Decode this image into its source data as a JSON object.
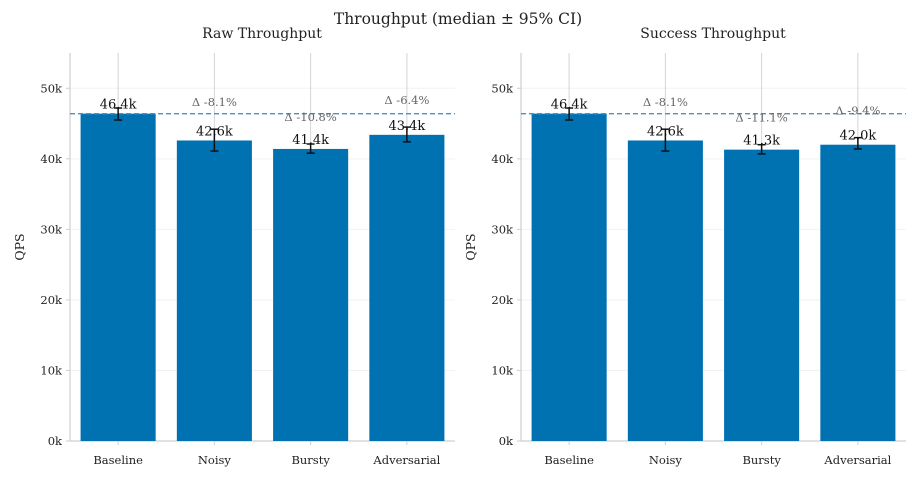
{
  "title": "Throughput (median ± 95% CI)",
  "colors": {
    "bar": "#0072b2",
    "baseline_line": "#4a90c2",
    "error": "#111111",
    "axis": "#cfcfcf",
    "grid": "#f2f2f2"
  },
  "chart_data": [
    {
      "type": "bar",
      "title": "Raw Throughput",
      "ylabel": "QPS",
      "xlabel": "",
      "ylim": [
        0,
        55000
      ],
      "yticks": [
        0,
        10000,
        20000,
        30000,
        40000,
        50000
      ],
      "ytick_labels": [
        "0k",
        "10k",
        "20k",
        "30k",
        "40k",
        "50k"
      ],
      "categories": [
        "Baseline",
        "Noisy",
        "Bursty",
        "Adversarial"
      ],
      "values": [
        46400,
        42600,
        41400,
        43400
      ],
      "error_low": [
        45500,
        41100,
        40800,
        42400
      ],
      "error_high": [
        47200,
        44200,
        42100,
        44500
      ],
      "value_labels": [
        "46.4k",
        "42.6k",
        "41.4k",
        "43.4k"
      ],
      "delta_labels": [
        "",
        "Δ -8.1%",
        "Δ -10.8%",
        "Δ -6.4%"
      ],
      "baseline": 46400
    },
    {
      "type": "bar",
      "title": "Success Throughput",
      "ylabel": "QPS",
      "xlabel": "",
      "ylim": [
        0,
        55000
      ],
      "yticks": [
        0,
        10000,
        20000,
        30000,
        40000,
        50000
      ],
      "ytick_labels": [
        "0k",
        "10k",
        "20k",
        "30k",
        "40k",
        "50k"
      ],
      "categories": [
        "Baseline",
        "Noisy",
        "Bursty",
        "Adversarial"
      ],
      "values": [
        46400,
        42600,
        41300,
        42000
      ],
      "error_low": [
        45500,
        41100,
        40700,
        41400
      ],
      "error_high": [
        47200,
        44200,
        42000,
        43000
      ],
      "value_labels": [
        "46.4k",
        "42.6k",
        "41.3k",
        "42.0k"
      ],
      "delta_labels": [
        "",
        "Δ -8.1%",
        "Δ -11.1%",
        "Δ -9.4%"
      ],
      "baseline": 46400
    }
  ]
}
